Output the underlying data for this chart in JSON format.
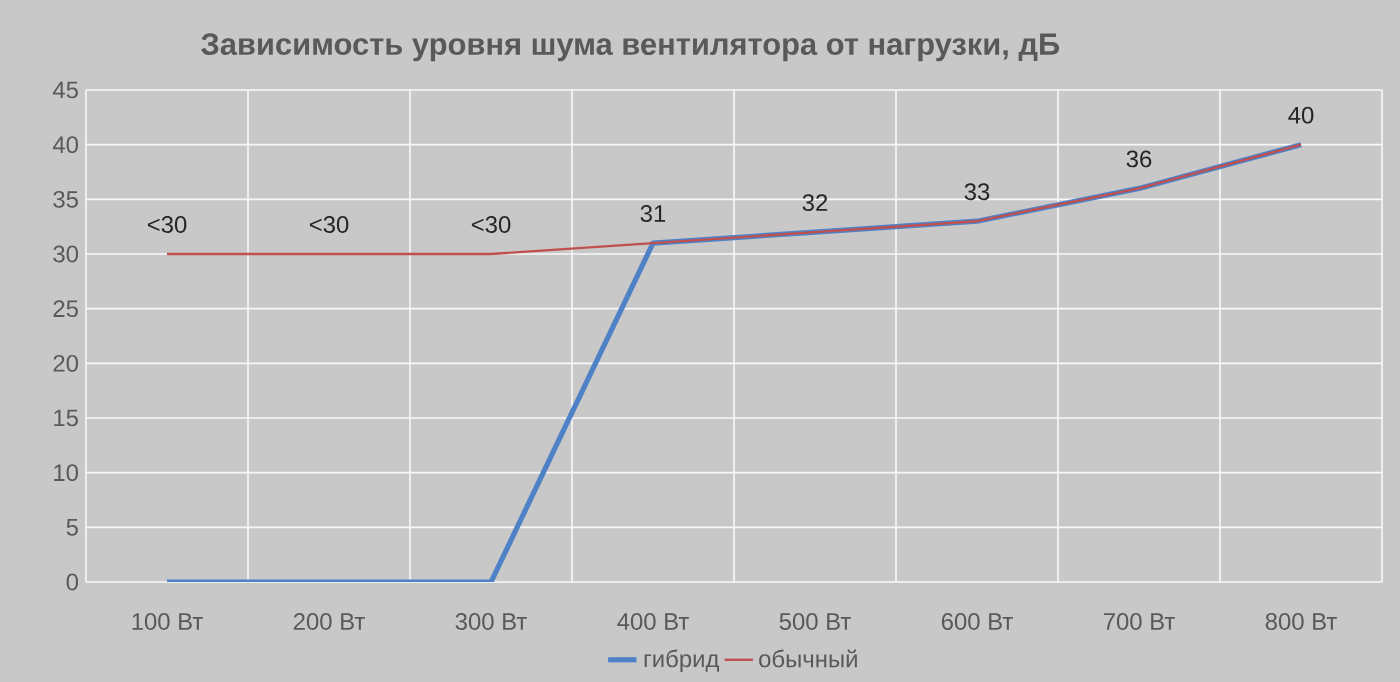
{
  "chart_data": {
    "type": "line",
    "title": "Зависимость уровня шума вентилятора от нагрузки, дБ",
    "categories": [
      "100 Вт",
      "200 Вт",
      "300 Вт",
      "400 Вт",
      "500 Вт",
      "600 Вт",
      "700 Вт",
      "800 Вт"
    ],
    "series": [
      {
        "name": "гибрид",
        "color": "#4f81c7",
        "values": [
          0,
          0,
          0,
          31,
          32,
          33,
          36,
          40
        ]
      },
      {
        "name": "обычный",
        "color": "#c0504d",
        "values": [
          30,
          30,
          30,
          31,
          32,
          33,
          36,
          40
        ],
        "value_labels": [
          "<30",
          "<30",
          "<30",
          "31",
          "32",
          "33",
          "36",
          "40"
        ]
      }
    ],
    "ylim": [
      0,
      45
    ],
    "yticks": [
      0,
      5,
      10,
      15,
      20,
      25,
      30,
      35,
      40,
      45
    ],
    "grid": true,
    "legend": "bottom"
  }
}
